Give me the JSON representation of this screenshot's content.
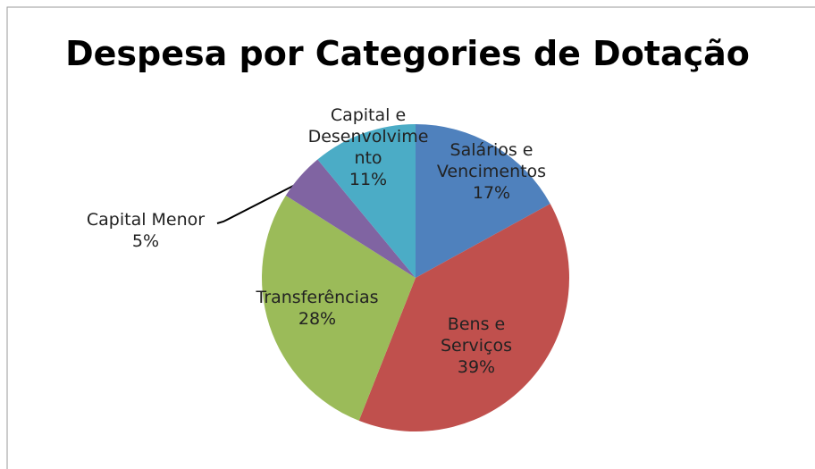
{
  "chart_data": {
    "type": "pie",
    "title": "Despesa por Categories de Dotação",
    "categories": [
      "Salários e Vencimentos",
      "Bens e Serviços",
      "Transferências",
      "Capital Menor",
      "Capital e Desenvolvimento"
    ],
    "values": [
      17,
      39,
      28,
      5,
      11
    ],
    "value_labels": [
      "17%",
      "39%",
      "28%",
      "5%",
      "11%"
    ],
    "colors": [
      "#4f81bd",
      "#c0504d",
      "#9bbb59",
      "#8064a2",
      "#4bacc6"
    ]
  }
}
